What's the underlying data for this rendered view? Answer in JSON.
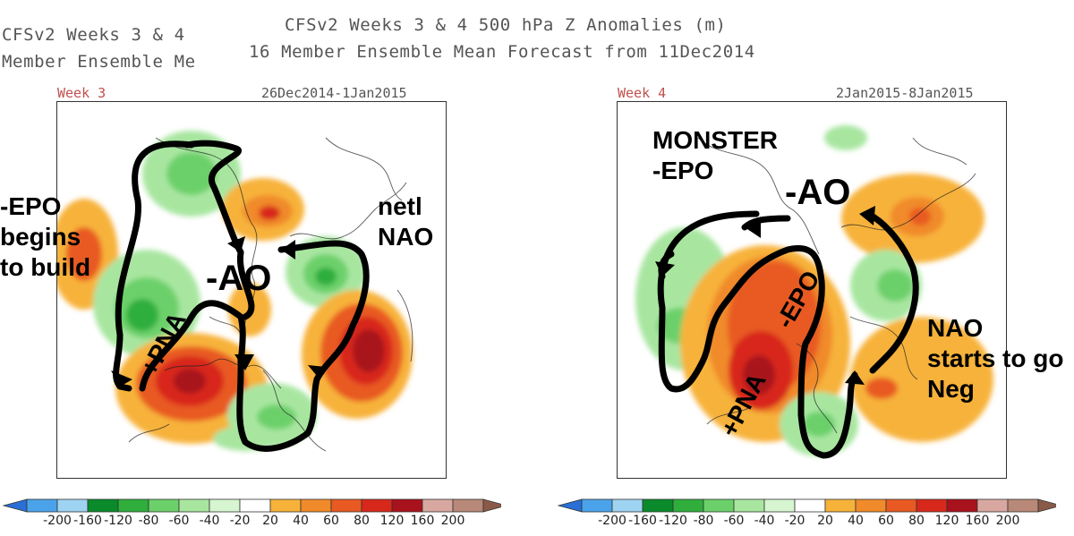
{
  "header": {
    "title_line1": "CFSv2 Weeks 3 & 4 500 hPa Z Anomalies (m)",
    "title_line2": "16 Member Ensemble Mean Forecast from 11Dec2014",
    "ghost_line1": "CFSv2 Weeks 3 & 4",
    "ghost_line2": "Member Ensemble Me"
  },
  "left_panel": {
    "week_label": "Week 3",
    "date_range": "26Dec2014-1Jan2015",
    "annotations": {
      "epo": "-EPO\nbegins\nto build",
      "ao": "-AO",
      "nao": "netl\nNAO",
      "pna": "+PNA"
    }
  },
  "right_panel": {
    "week_label": "Week 4",
    "date_range": "2Jan2015-8Jan2015",
    "annotations": {
      "monster": "MONSTER\n-EPO",
      "ao": "-AO",
      "epo": "-EPO",
      "pna": "+PNA",
      "nao": "NAO\nstarts to go\nNeg"
    }
  },
  "colorbar": {
    "ticks": [
      "-200",
      "-160",
      "-120",
      "-80",
      "-60",
      "-40",
      "-20",
      "20",
      "40",
      "60",
      "80",
      "120",
      "160",
      "200"
    ],
    "colors": [
      "#2a6fd6",
      "#4aa3ea",
      "#9fd3f2",
      "#0a8a2a",
      "#2fae3c",
      "#6cd06a",
      "#a8e6a0",
      "#d6f5d0",
      "#ffffff",
      "#f7b23a",
      "#f08a2a",
      "#e85a22",
      "#d8281c",
      "#a8121c",
      "#d8a8a0",
      "#b88878",
      "#8a5a48"
    ]
  }
}
